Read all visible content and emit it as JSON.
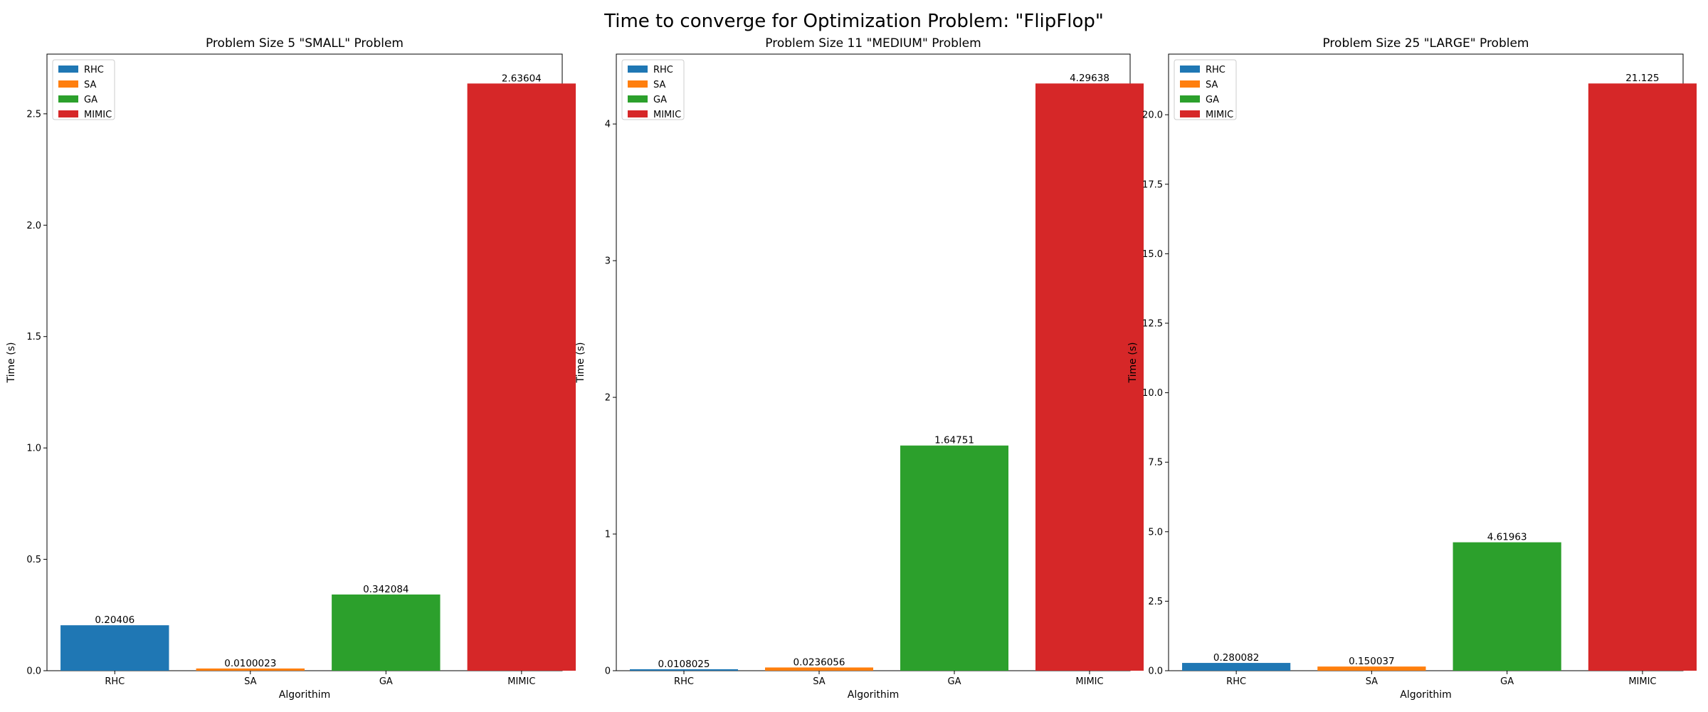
{
  "title": "Time to converge for Optimization Problem: \"FlipFlop\"",
  "colors": {
    "RHC": "#1f77b4",
    "SA": "#ff7f0e",
    "GA": "#2ca02c",
    "MIMIC": "#d62728"
  },
  "chart_data": [
    {
      "type": "bar",
      "title": "Problem Size 5 \"SMALL\" Problem",
      "xlabel": "Algorithim",
      "ylabel": "Time (s)",
      "categories": [
        "RHC",
        "SA",
        "GA",
        "MIMIC"
      ],
      "values": [
        0.20406,
        0.0100023,
        0.342084,
        2.63604
      ],
      "value_labels": [
        "0.20406",
        "0.0100023",
        "0.342084",
        "2.63604"
      ],
      "ylim": [
        0,
        2.768
      ],
      "yticks": [
        0,
        0.5,
        1.0,
        1.5,
        2.0,
        2.5
      ],
      "ytick_labels": [
        "0.0",
        "0.5",
        "1.0",
        "1.5",
        "2.0",
        "2.5"
      ],
      "legend": [
        "RHC",
        "SA",
        "GA",
        "MIMIC"
      ],
      "legend_position": "top-left",
      "grid": false
    },
    {
      "type": "bar",
      "title": "Problem Size 11 \"MEDIUM\" Problem",
      "xlabel": "Algorithim",
      "ylabel": "Time (s)",
      "categories": [
        "RHC",
        "SA",
        "GA",
        "MIMIC"
      ],
      "values": [
        0.0108025,
        0.0236056,
        1.64751,
        4.29638
      ],
      "value_labels": [
        "0.0108025",
        "0.0236056",
        "1.64751",
        "4.29638"
      ],
      "ylim": [
        0,
        4.5112
      ],
      "yticks": [
        0,
        1,
        2,
        3,
        4
      ],
      "ytick_labels": [
        "0",
        "1",
        "2",
        "3",
        "4"
      ],
      "legend": [
        "RHC",
        "SA",
        "GA",
        "MIMIC"
      ],
      "legend_position": "top-left",
      "grid": false
    },
    {
      "type": "bar",
      "title": "Problem Size 25 \"LARGE\" Problem",
      "xlabel": "Algorithim",
      "ylabel": "Time (s)",
      "categories": [
        "RHC",
        "SA",
        "GA",
        "MIMIC"
      ],
      "values": [
        0.280082,
        0.150037,
        4.61963,
        21.125
      ],
      "value_labels": [
        "0.280082",
        "0.150037",
        "4.61963",
        "21.125"
      ],
      "ylim": [
        0,
        22.181
      ],
      "yticks": [
        0,
        2.5,
        5.0,
        7.5,
        10.0,
        12.5,
        15.0,
        17.5,
        20.0
      ],
      "ytick_labels": [
        "0.0",
        "2.5",
        "5.0",
        "7.5",
        "10.0",
        "12.5",
        "15.0",
        "17.5",
        "20.0"
      ],
      "legend": [
        "RHC",
        "SA",
        "GA",
        "MIMIC"
      ],
      "legend_position": "top-left",
      "grid": false
    }
  ]
}
